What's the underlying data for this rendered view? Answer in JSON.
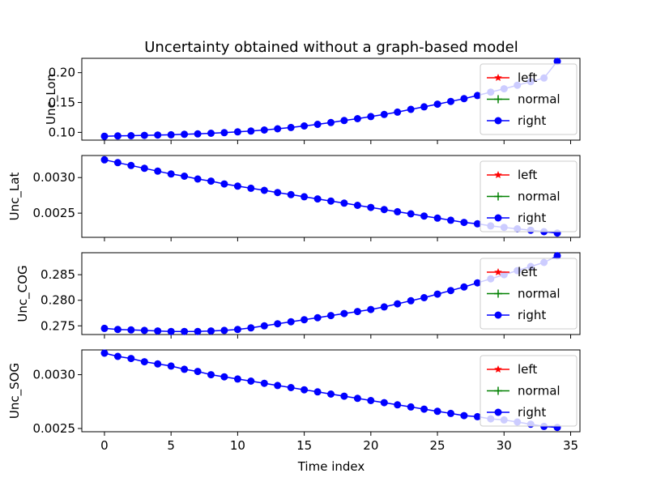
{
  "chart_data": {
    "type": "line",
    "title": "Uncertainty obtained without a graph-based model",
    "xlabel": "Time index",
    "x": [
      0,
      1,
      2,
      3,
      4,
      5,
      6,
      7,
      8,
      9,
      10,
      11,
      12,
      13,
      14,
      15,
      16,
      17,
      18,
      19,
      20,
      21,
      22,
      23,
      24,
      25,
      26,
      27,
      28,
      29,
      30,
      31,
      32,
      33,
      34
    ],
    "xlim": [
      -1.7,
      35.7
    ],
    "xticks": [
      0,
      5,
      10,
      15,
      20,
      25,
      30,
      35
    ],
    "legend_placement": "right",
    "legend": [
      {
        "name": "left",
        "color": "#ff0000",
        "marker": "star"
      },
      {
        "name": "normal",
        "color": "#008000",
        "marker": "plus"
      },
      {
        "name": "right",
        "color": "#0000ff",
        "marker": "circle"
      }
    ],
    "subplots": [
      {
        "ylabel": "Unc_Lon",
        "ylim": [
          0.087,
          0.224
        ],
        "yticks": [
          0.1,
          0.15,
          0.2
        ],
        "ytick_labels": [
          "0.10",
          "0.15",
          "0.20"
        ],
        "series": [
          {
            "name": "right",
            "values": [
              0.0935,
              0.094,
              0.0945,
              0.095,
              0.0955,
              0.096,
              0.0967,
              0.0975,
              0.0985,
              0.0995,
              0.1008,
              0.1022,
              0.104,
              0.106,
              0.1082,
              0.1108,
              0.1135,
              0.1165,
              0.1198,
              0.123,
              0.1265,
              0.13,
              0.134,
              0.1385,
              0.1428,
              0.1472,
              0.1518,
              0.1565,
              0.1618,
              0.1675,
              0.173,
              0.179,
              0.185,
              0.191,
              0.219
            ]
          }
        ]
      },
      {
        "ylabel": "Unc_Lat",
        "ylim": [
          0.00216,
          0.00331
        ],
        "yticks": [
          0.0025,
          0.003
        ],
        "ytick_labels": [
          "0.0025",
          "0.0030"
        ],
        "series": [
          {
            "name": "right",
            "values": [
              0.00325,
              0.00321,
              0.00317,
              0.00313,
              0.00309,
              0.00305,
              0.00302,
              0.00298,
              0.00295,
              0.00291,
              0.00288,
              0.00285,
              0.00282,
              0.00279,
              0.00276,
              0.00273,
              0.0027,
              0.00267,
              0.00264,
              0.00261,
              0.00258,
              0.00255,
              0.00252,
              0.00249,
              0.00246,
              0.00243,
              0.0024,
              0.00237,
              0.00235,
              0.00232,
              0.0023,
              0.00228,
              0.00226,
              0.00224,
              0.00222
            ]
          }
        ]
      },
      {
        "ylabel": "Unc_COG",
        "ylim": [
          0.2733,
          0.2893
        ],
        "yticks": [
          0.275,
          0.28,
          0.285
        ],
        "ytick_labels": [
          "0.275",
          "0.280",
          "0.285"
        ],
        "series": [
          {
            "name": "right",
            "values": [
              0.2745,
              0.2743,
              0.2742,
              0.2741,
              0.274,
              0.2739,
              0.2739,
              0.2739,
              0.274,
              0.2741,
              0.2743,
              0.2746,
              0.275,
              0.2754,
              0.2758,
              0.2762,
              0.2766,
              0.277,
              0.2774,
              0.2778,
              0.2782,
              0.2787,
              0.2793,
              0.2799,
              0.2805,
              0.2812,
              0.2819,
              0.2826,
              0.2834,
              0.2842,
              0.285,
              0.2858,
              0.2866,
              0.2874,
              0.2887
            ]
          }
        ]
      },
      {
        "ylabel": "Unc_SOG",
        "ylim": [
          0.00247,
          0.00323
        ],
        "yticks": [
          0.0025,
          0.003
        ],
        "ytick_labels": [
          "0.0025",
          "0.0030"
        ],
        "series": [
          {
            "name": "right",
            "values": [
              0.0032,
              0.00317,
              0.00315,
              0.00312,
              0.0031,
              0.00308,
              0.00305,
              0.00303,
              0.003,
              0.00298,
              0.00296,
              0.00294,
              0.00292,
              0.0029,
              0.00288,
              0.00286,
              0.00284,
              0.00282,
              0.0028,
              0.00278,
              0.00276,
              0.00274,
              0.00272,
              0.0027,
              0.00268,
              0.00266,
              0.00264,
              0.00262,
              0.00261,
              0.00259,
              0.00258,
              0.00256,
              0.00254,
              0.00252,
              0.00251
            ]
          }
        ]
      }
    ]
  }
}
